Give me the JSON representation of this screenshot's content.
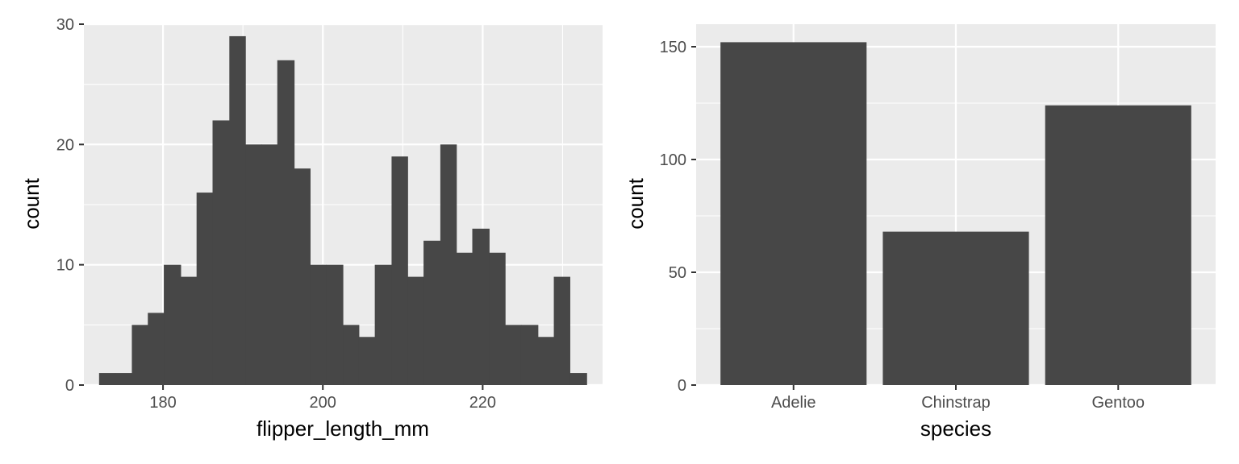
{
  "chart_data": [
    {
      "type": "bar",
      "subtype": "histogram",
      "xlabel": "flipper_length_mm",
      "ylabel": "count",
      "xlim": [
        170.1,
        235
      ],
      "ylim": [
        0,
        30
      ],
      "x_ticks": [
        180,
        200,
        220
      ],
      "y_ticks": [
        0,
        10,
        20,
        30
      ],
      "bin_width": 2.0333,
      "bins": [
        {
          "x0": 172.0,
          "x1": 174.0,
          "count": 1
        },
        {
          "x0": 174.0,
          "x1": 176.1,
          "count": 1
        },
        {
          "x0": 176.1,
          "x1": 178.1,
          "count": 5
        },
        {
          "x0": 178.1,
          "x1": 180.1,
          "count": 6
        },
        {
          "x0": 180.1,
          "x1": 182.2,
          "count": 10
        },
        {
          "x0": 182.2,
          "x1": 184.2,
          "count": 9
        },
        {
          "x0": 184.2,
          "x1": 186.2,
          "count": 16
        },
        {
          "x0": 186.2,
          "x1": 188.3,
          "count": 22
        },
        {
          "x0": 188.3,
          "x1": 190.3,
          "count": 29
        },
        {
          "x0": 190.3,
          "x1": 192.3,
          "count": 20
        },
        {
          "x0": 192.3,
          "x1": 194.3,
          "count": 20
        },
        {
          "x0": 194.3,
          "x1": 196.4,
          "count": 27
        },
        {
          "x0": 196.4,
          "x1": 198.4,
          "count": 18
        },
        {
          "x0": 198.4,
          "x1": 200.4,
          "count": 10
        },
        {
          "x0": 200.4,
          "x1": 202.5,
          "count": 10
        },
        {
          "x0": 202.5,
          "x1": 204.5,
          "count": 5
        },
        {
          "x0": 204.5,
          "x1": 206.5,
          "count": 4
        },
        {
          "x0": 206.5,
          "x1": 208.6,
          "count": 10
        },
        {
          "x0": 208.6,
          "x1": 210.6,
          "count": 19
        },
        {
          "x0": 210.6,
          "x1": 212.6,
          "count": 9
        },
        {
          "x0": 212.6,
          "x1": 214.7,
          "count": 12
        },
        {
          "x0": 214.7,
          "x1": 216.7,
          "count": 20
        },
        {
          "x0": 216.7,
          "x1": 218.7,
          "count": 11
        },
        {
          "x0": 218.7,
          "x1": 220.8,
          "count": 13
        },
        {
          "x0": 220.8,
          "x1": 222.8,
          "count": 11
        },
        {
          "x0": 222.8,
          "x1": 224.8,
          "count": 5
        },
        {
          "x0": 224.8,
          "x1": 226.9,
          "count": 5
        },
        {
          "x0": 226.9,
          "x1": 228.9,
          "count": 4
        },
        {
          "x0": 228.9,
          "x1": 230.9,
          "count": 9
        },
        {
          "x0": 230.9,
          "x1": 233.0,
          "count": 1
        }
      ],
      "grid": true,
      "colors": {
        "panel": "#EBEBEB",
        "grid": "#FFFFFF",
        "bar": "#474747"
      }
    },
    {
      "type": "bar",
      "xlabel": "species",
      "ylabel": "count",
      "categories": [
        "Adelie",
        "Chinstrap",
        "Gentoo"
      ],
      "values": [
        152,
        68,
        124
      ],
      "ylim": [
        0,
        160
      ],
      "y_ticks": [
        0,
        50,
        100,
        150
      ],
      "grid": true,
      "colors": {
        "panel": "#EBEBEB",
        "grid": "#FFFFFF",
        "bar": "#474747"
      }
    }
  ]
}
